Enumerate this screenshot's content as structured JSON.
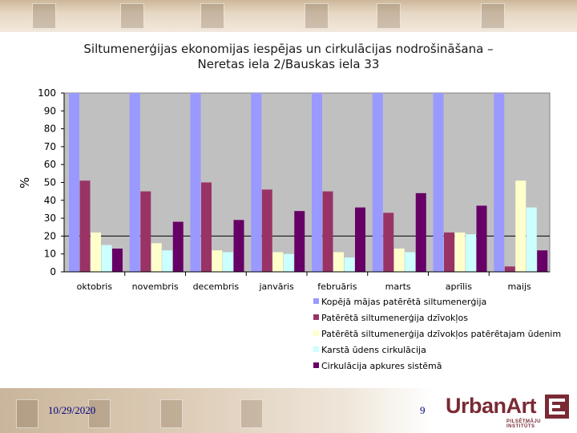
{
  "slide": {
    "title_line1": "Siltumenerģijas ekonomijas iespējas un cirkulācijas nodrošināšana –",
    "title_line2": "Neretas iela 2/Bauskas iela 33",
    "date": "10/29/2020",
    "page_number": "9",
    "logo_text": "UrbanArt",
    "logo_subtitle": "PILSĒTMĀJU INSTITŪTS"
  },
  "chart_data": {
    "type": "bar",
    "ylabel": "%",
    "ylim": [
      0,
      100
    ],
    "yticks": [
      0,
      10,
      20,
      30,
      40,
      50,
      60,
      70,
      80,
      90,
      100
    ],
    "grid": false,
    "legend_position": "bottom-right",
    "plot_background": "#c0c0c0",
    "categories": [
      "oktobris",
      "novembris",
      "decembris",
      "janvāris",
      "februāris",
      "marts",
      "aprīlis",
      "maijs"
    ],
    "series": [
      {
        "name": "Kopējā mājas patērētā siltumenerģija",
        "color": "#9999ff",
        "values": [
          100,
          100,
          100,
          100,
          100,
          100,
          100,
          100
        ]
      },
      {
        "name": "Patērētā siltumenerģija dzīvokļos",
        "color": "#993366",
        "values": [
          51,
          45,
          50,
          46,
          45,
          33,
          22,
          3
        ]
      },
      {
        "name": "Patērētā siltumenerģija dzīvokļos patērētajam ūdenim",
        "color": "#ffffcc",
        "values": [
          22,
          16,
          12,
          11,
          11,
          13,
          22,
          51
        ]
      },
      {
        "name": "Karstā ūdens cirkulācija",
        "color": "#ccffff",
        "values": [
          15,
          12,
          11,
          10,
          8,
          11,
          21,
          36
        ]
      },
      {
        "name": "Cirkulācija apkures sistēmā",
        "color": "#660066",
        "values": [
          13,
          28,
          29,
          34,
          36,
          44,
          37,
          12
        ]
      }
    ]
  }
}
